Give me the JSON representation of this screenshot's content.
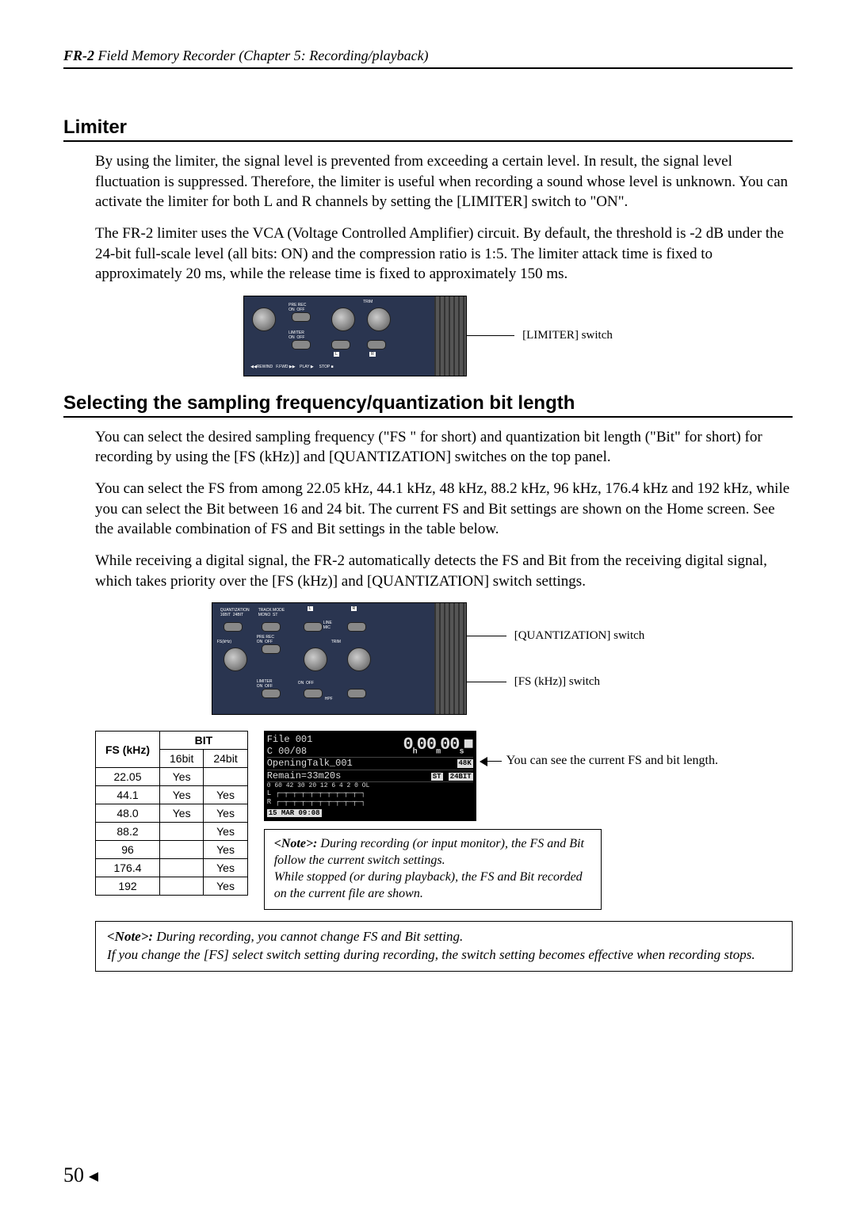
{
  "header": {
    "product": "FR-2",
    "title_rest": " Field Memory Recorder (Chapter 5: Recording/playback)"
  },
  "limiter": {
    "heading": "Limiter",
    "p1": "By using the limiter, the signal level is prevented from exceeding a certain level. In result, the signal level fluctuation is suppressed. Therefore, the limiter is useful when recording a sound whose level is unknown. You can activate the limiter for both L and R channels by setting the [LIMITER] switch to \"ON\".",
    "p2": "The FR-2 limiter uses the VCA (Voltage Controlled Amplifier) circuit. By default, the threshold is -2 dB under the 24-bit full-scale level (all bits: ON) and the compression ratio is 1:5. The limiter attack time is fixed to approximately 20 ms, while the release time is fixed to approximately 150 ms.",
    "callout": "[LIMITER] switch"
  },
  "fsbit": {
    "heading": "Selecting the sampling frequency/quantization bit length",
    "p1": "You can select the desired sampling frequency (\"FS \" for short) and quantization bit length (\"Bit\" for short) for recording by using the [FS (kHz)] and [QUANTIZATION] switches on the top panel.",
    "p2": "You can select the FS from among 22.05 kHz, 44.1 kHz, 48 kHz, 88.2 kHz, 96 kHz, 176.4 kHz and 192 kHz, while you can select the Bit between 16 and 24 bit. The current FS and Bit settings are shown on the Home screen. See the available combination of FS and Bit settings in the table below.",
    "p3": "While receiving a digital signal, the FR-2 automatically detects the FS and Bit from the receiving digital signal, which takes priority over the [FS (kHz)] and [QUANTIZATION] switch settings.",
    "callout_quant": "[QUANTIZATION] switch",
    "callout_fs": "[FS (kHz)] switch"
  },
  "table": {
    "col_fs": "FS (kHz)",
    "col_bit": "BIT",
    "col_16": "16bit",
    "col_24": "24bit",
    "rows": [
      {
        "fs": "22.05",
        "b16": "Yes",
        "b24": ""
      },
      {
        "fs": "44.1",
        "b16": "Yes",
        "b24": "Yes"
      },
      {
        "fs": "48.0",
        "b16": "Yes",
        "b24": "Yes"
      },
      {
        "fs": "88.2",
        "b16": "",
        "b24": "Yes"
      },
      {
        "fs": "96",
        "b16": "",
        "b24": "Yes"
      },
      {
        "fs": "176.4",
        "b16": "",
        "b24": "Yes"
      },
      {
        "fs": "192",
        "b16": "",
        "b24": "Yes"
      }
    ]
  },
  "lcd": {
    "file": "File 001",
    "counter": "C 00/08",
    "time_h": "0",
    "time_m": "00",
    "time_s": "00",
    "name": "OpeningTalk_001",
    "fs_badge": "48K",
    "remain": "Remain=33m20s",
    "st_badge": "ST",
    "bit_badge": "24BIT",
    "meter_scale": "0 60   42   30   20   12    6  4  2  0 OL",
    "meter_l": "L",
    "meter_r": "R",
    "date": "15 MAR 09:08",
    "side_text": "You can see the current FS and bit length."
  },
  "note1": {
    "label": "<Note>:",
    "l1": " During recording (or input monitor), the FS and Bit follow the current switch settings.",
    "l2": "While stopped (or during playback), the FS and Bit recorded on the current file are shown."
  },
  "note2": {
    "label": "<Note>:",
    "l1": " During recording, you cannot change FS and Bit setting.",
    "l2": "If you change the [FS] select switch setting during recording, the switch setting becomes effective when recording stops."
  },
  "page_number": "50"
}
